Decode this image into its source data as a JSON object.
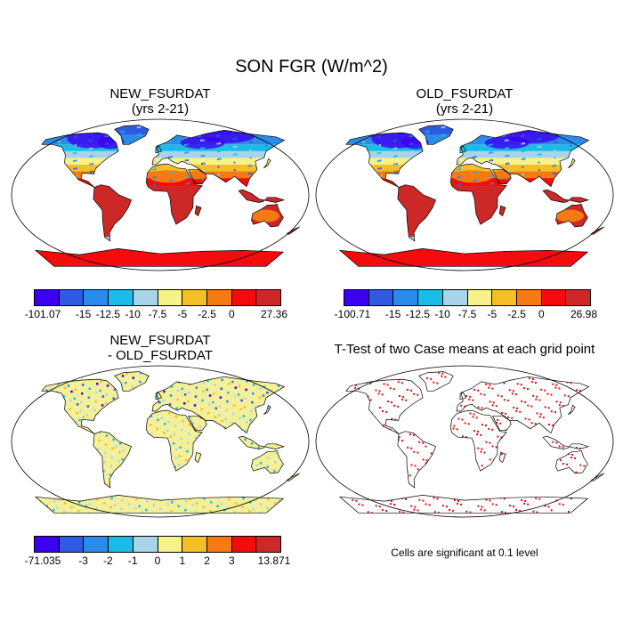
{
  "title": "SON FGR (W/m^2)",
  "panels": {
    "new": {
      "title_line1": "NEW_FSURDAT",
      "title_line2": "(yrs 2-21)"
    },
    "old": {
      "title_line1": "OLD_FSURDAT",
      "title_line2": "(yrs 2-21)"
    },
    "diff": {
      "title_line1": "NEW_FSURDAT",
      "title_line2": "- OLD_FSURDAT"
    },
    "ttest": {
      "title": "T-Test of two Case means at each grid point",
      "note": "Cells are significant at 0.1 level"
    }
  },
  "colors": {
    "palette": [
      "#3c00f0",
      "#2f5be0",
      "#2a8ce8",
      "#1cbbe8",
      "#a8d4ea",
      "#f8f28c",
      "#f6be26",
      "#f67a14",
      "#f40c0c",
      "#cc2828"
    ],
    "land_base": "#f4f09a",
    "ocean": "#ffffff",
    "significant": "#e01010"
  },
  "colorbars": {
    "new": {
      "labels": [
        "-101.07",
        "-15",
        "-12.5",
        "-10",
        "-7.5",
        "-5",
        "-2.5",
        "0",
        "27.36"
      ]
    },
    "old": {
      "labels": [
        "-100.71",
        "-15",
        "-12.5",
        "-10",
        "-7.5",
        "-5",
        "-2.5",
        "0",
        "26.98"
      ]
    },
    "diff": {
      "labels": [
        "-71.035",
        "-3",
        "-2",
        "-1",
        "0",
        "1",
        "2",
        "3",
        "13.871"
      ]
    }
  }
}
